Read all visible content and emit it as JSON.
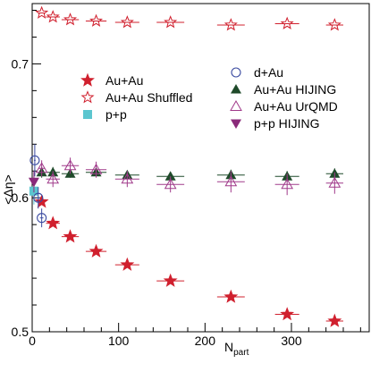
{
  "chart_data": {
    "type": "scatter",
    "xlabel": "N",
    "xlabel_sub": "part",
    "ylabel": "<Δη>",
    "xlim": [
      0,
      390
    ],
    "ylim": [
      0.5,
      0.745
    ],
    "x_ticks": [
      0,
      100,
      200,
      300
    ],
    "x_tick_labels": [
      "0",
      "100",
      "200",
      "300"
    ],
    "y_ticks": [
      0.5,
      0.6,
      0.7
    ],
    "y_tick_labels": [
      "0.5",
      "0.6",
      "0.7"
    ],
    "grid": false,
    "legend_left": [
      {
        "name": "Au+Au",
        "marker": "star-filled",
        "color": "#d0202e"
      },
      {
        "name": "Au+Au Shuffled",
        "marker": "star-open",
        "color": "#d0202e"
      },
      {
        "name": "p+p",
        "marker": "square-filled",
        "color": "#5cc6cf"
      }
    ],
    "legend_right": [
      {
        "name": "d+Au",
        "marker": "circle-open",
        "color": "#3a4aa0"
      },
      {
        "name": "Au+Au HIJING",
        "marker": "triangle-up-filled",
        "color": "#1f4a2a"
      },
      {
        "name": "Au+Au UrQMD",
        "marker": "triangle-up-open",
        "color": "#a03a8a"
      },
      {
        "name": "p+p HIJING",
        "marker": "triangle-down-filled",
        "color": "#8a2a7a"
      }
    ],
    "series": [
      {
        "name": "Au+Au",
        "marker": "star-filled",
        "color": "#d0202e",
        "x": [
          11,
          24,
          44,
          74,
          110,
          160,
          230,
          295,
          350
        ],
        "y": [
          0.597,
          0.581,
          0.571,
          0.56,
          0.55,
          0.538,
          0.526,
          0.513,
          0.508
        ],
        "xerr": [
          4,
          8,
          10,
          12,
          14,
          16,
          16,
          14,
          10
        ],
        "yerr": [
          0,
          0,
          0,
          0,
          0,
          0,
          0,
          0,
          0
        ]
      },
      {
        "name": "Au+Au Shuffled",
        "marker": "star-open",
        "color": "#d0202e",
        "x": [
          11,
          24,
          44,
          74,
          110,
          160,
          230,
          295,
          350
        ],
        "y": [
          0.738,
          0.735,
          0.733,
          0.732,
          0.731,
          0.731,
          0.729,
          0.73,
          0.729
        ],
        "xerr": [
          4,
          8,
          10,
          12,
          14,
          16,
          16,
          14,
          10
        ],
        "yerr": [
          0,
          0,
          0,
          0,
          0,
          0,
          0,
          0,
          0
        ]
      },
      {
        "name": "p+p",
        "marker": "square-filled",
        "color": "#5cc6cf",
        "x": [
          2
        ],
        "y": [
          0.605
        ],
        "xerr": [
          0
        ],
        "yerr": [
          0.01
        ]
      },
      {
        "name": "d+Au",
        "marker": "circle-open",
        "color": "#3a4aa0",
        "x": [
          3,
          7,
          11
        ],
        "y": [
          0.628,
          0.6,
          0.585
        ],
        "xerr": [
          1,
          2,
          2
        ],
        "yerr": [
          0.012,
          0.008,
          0.007
        ]
      },
      {
        "name": "Au+Au HIJING",
        "marker": "triangle-up-filled",
        "color": "#1f4a2a",
        "x": [
          11,
          24,
          44,
          74,
          110,
          160,
          230,
          295,
          350
        ],
        "y": [
          0.619,
          0.619,
          0.618,
          0.619,
          0.617,
          0.616,
          0.617,
          0.616,
          0.618
        ],
        "xerr": [
          4,
          8,
          10,
          12,
          14,
          16,
          16,
          14,
          10
        ],
        "yerr": [
          0.004,
          0.004,
          0.003,
          0.003,
          0.003,
          0.003,
          0.004,
          0.004,
          0.004
        ]
      },
      {
        "name": "Au+Au UrQMD",
        "marker": "triangle-up-open",
        "color": "#a03a8a",
        "x": [
          11,
          24,
          44,
          74,
          110,
          160,
          230,
          295,
          350
        ],
        "y": [
          0.622,
          0.614,
          0.624,
          0.621,
          0.614,
          0.61,
          0.612,
          0.61,
          0.611
        ],
        "xerr": [
          4,
          8,
          10,
          12,
          14,
          16,
          16,
          14,
          10
        ],
        "yerr": [
          0.006,
          0.006,
          0.006,
          0.006,
          0.006,
          0.006,
          0.008,
          0.008,
          0.008
        ]
      },
      {
        "name": "p+p HIJING",
        "marker": "triangle-down-filled",
        "color": "#8a2a7a",
        "x": [
          2
        ],
        "y": [
          0.612
        ],
        "xerr": [
          0
        ],
        "yerr": [
          0.008
        ]
      }
    ]
  }
}
